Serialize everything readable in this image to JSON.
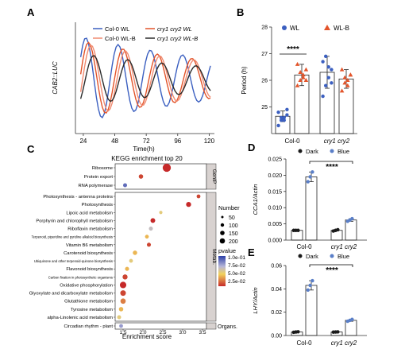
{
  "panels": {
    "A": {
      "letter": "A",
      "ylabel": "CAB2::LUC",
      "xlabel": "Time(h)",
      "xticks": [
        "24",
        "48",
        "72",
        "96",
        "120"
      ],
      "legend": [
        "Col-0 WL",
        "cry1 cry2 WL",
        "Col-0 WL-B",
        "cry1 cry2 WL-B"
      ]
    },
    "B": {
      "letter": "B",
      "ylabel": "Period (h)",
      "yticks": [
        "25",
        "26",
        "27",
        "28"
      ],
      "groups": [
        "Col-0",
        "cry1 cry2"
      ],
      "legend": [
        "WL",
        "WL-B"
      ],
      "sig": "****"
    },
    "C": {
      "letter": "C",
      "title": "KEGG enrichment top 20",
      "xlabel": "Enrichment score",
      "xticks": [
        "1.5",
        "2.0",
        "2.5",
        "3.0",
        "3.5"
      ],
      "facets": [
        "GenIP",
        "Metab.",
        "Organs."
      ],
      "size_title": "Number",
      "size_labels": [
        "50",
        "100",
        "150",
        "200"
      ],
      "color_title": "pvalue",
      "color_labels": [
        "1.0e-01",
        "7.5e-02",
        "5.0e-02",
        "2.5e-02"
      ]
    },
    "D": {
      "letter": "D",
      "ylabel": "CCA1/Actin",
      "yticks": [
        "0.000",
        "0.005",
        "0.010",
        "0.015",
        "0.020",
        "0.025"
      ],
      "groups": [
        "Col-0",
        "cry1 cry2"
      ],
      "legend": [
        "Dark",
        "Blue"
      ],
      "sig": "****"
    },
    "E": {
      "letter": "E",
      "ylabel": "LHY/Actin",
      "yticks": [
        "0.00",
        "0.02",
        "0.04",
        "0.06"
      ],
      "groups": [
        "Col-0",
        "cry1 cry2"
      ],
      "legend": [
        "Dark",
        "Blue"
      ],
      "sig": "****"
    }
  },
  "colors": {
    "col0_wl": "#3b5fc0",
    "cry_wl": "#e3542a",
    "col0_wlb": "#f08a70",
    "cry_wlb": "#2b2b2b",
    "dark": "#1a1a1a",
    "blue": "#5a7fc8",
    "facet": "#d8d2d0"
  },
  "chart_data": [
    {
      "panel": "A",
      "type": "line",
      "xlim": [
        18,
        124
      ],
      "series": [
        {
          "name": "Col-0 WL",
          "period_h": 24.6,
          "phase_h": 26,
          "amplitude": 1.0,
          "color": "#3b5fc0"
        },
        {
          "name": "cry1 cry2 WL",
          "period_h": 26.3,
          "phase_h": 28,
          "amplitude": 0.9,
          "color": "#e3542a"
        },
        {
          "name": "Col-0 WL-B",
          "period_h": 26.2,
          "phase_h": 30,
          "amplitude": 0.85,
          "color": "#f08a70"
        },
        {
          "name": "cry1 cry2 WL-B",
          "period_h": 26.0,
          "phase_h": 32,
          "amplitude": 0.6,
          "color": "#2b2b2b"
        }
      ]
    },
    {
      "panel": "B",
      "type": "bar",
      "ylim": [
        24,
        28
      ],
      "categories": [
        "Col-0",
        "cry1 cry2"
      ],
      "series": [
        {
          "name": "WL",
          "values": [
            24.65,
            26.3
          ],
          "err": [
            0.2,
            0.6
          ],
          "color": "#3b5fc0",
          "points": [
            [
              24.3,
              24.5,
              24.6,
              24.7,
              24.8,
              24.6,
              24.5,
              24.9
            ],
            [
              25.4,
              25.8,
              26.1,
              26.4,
              26.7,
              26.9,
              26.5,
              25.9
            ]
          ]
        },
        {
          "name": "WL-B",
          "values": [
            26.2,
            26.05
          ],
          "err": [
            0.4,
            0.35
          ],
          "color": "#e3542a",
          "points": [
            [
              25.8,
              26.0,
              26.2,
              26.4,
              26.6,
              26.3,
              26.1,
              26.0
            ],
            [
              25.6,
              25.9,
              26.0,
              26.2,
              26.4,
              26.1,
              25.8,
              26.2
            ]
          ]
        }
      ]
    },
    {
      "panel": "C",
      "type": "scatter",
      "xlim": [
        1.3,
        3.6
      ],
      "rows": [
        {
          "term": "Ribosome",
          "x": 2.6,
          "count": 220,
          "p": 0.02,
          "facet": "GenIP"
        },
        {
          "term": "Protein export",
          "x": 1.95,
          "count": 40,
          "p": 0.03,
          "facet": "GenIP"
        },
        {
          "term": "RNA polymerase",
          "x": 1.55,
          "count": 30,
          "p": 0.09,
          "facet": "GenIP"
        },
        {
          "term": "Photosynthesis - antenna proteins",
          "x": 3.4,
          "count": 25,
          "p": 0.03,
          "facet": "Metab."
        },
        {
          "term": "Photosynthesis",
          "x": 3.15,
          "count": 60,
          "p": 0.02,
          "facet": "Metab."
        },
        {
          "term": "Lipoic acid metabolism",
          "x": 2.45,
          "count": 15,
          "p": 0.06,
          "facet": "Metab."
        },
        {
          "term": "Porphyrin and chlorophyll metabolism",
          "x": 2.25,
          "count": 50,
          "p": 0.02,
          "facet": "Metab."
        },
        {
          "term": "Riboflavin metabolism",
          "x": 2.2,
          "count": 30,
          "p": 0.07,
          "facet": "Metab."
        },
        {
          "term": "Terpenoid, piperidine and pyridine alkaloid biosynthesis",
          "x": 2.1,
          "count": 25,
          "p": 0.05,
          "facet": "Metab."
        },
        {
          "term": "Vitamin B6 metabolism",
          "x": 2.15,
          "count": 30,
          "p": 0.03,
          "facet": "Metab."
        },
        {
          "term": "Carotenoid biosynthesis",
          "x": 1.8,
          "count": 40,
          "p": 0.05,
          "facet": "Metab."
        },
        {
          "term": "Ubiquinone and other terpenoid-quinone biosynthesis",
          "x": 1.7,
          "count": 25,
          "p": 0.06,
          "facet": "Metab."
        },
        {
          "term": "Flavonoid biosynthesis",
          "x": 1.6,
          "count": 30,
          "p": 0.05,
          "facet": "Metab."
        },
        {
          "term": "Carbon fixation in photosynthetic organisms",
          "x": 1.55,
          "count": 60,
          "p": 0.03,
          "facet": "Metab."
        },
        {
          "term": "Oxidative phosphorylation",
          "x": 1.5,
          "count": 120,
          "p": 0.02,
          "facet": "Metab."
        },
        {
          "term": "Glyoxylate and dicarboxylate metabolism",
          "x": 1.5,
          "count": 80,
          "p": 0.03,
          "facet": "Metab."
        },
        {
          "term": "Glutathione metabolism",
          "x": 1.5,
          "count": 70,
          "p": 0.04,
          "facet": "Metab."
        },
        {
          "term": "Tyrosine metabolism",
          "x": 1.45,
          "count": 40,
          "p": 0.05,
          "facet": "Metab."
        },
        {
          "term": "alpha-Linolenic acid metabolism",
          "x": 1.4,
          "count": 30,
          "p": 0.06,
          "facet": "Metab."
        },
        {
          "term": "Circadian rhythm - plant",
          "x": 1.45,
          "count": 25,
          "p": 0.08,
          "facet": "Organs."
        }
      ]
    },
    {
      "panel": "D",
      "type": "bar",
      "ylim": [
        0,
        0.025
      ],
      "categories": [
        "Col-0",
        "cry1 cry2"
      ],
      "series": [
        {
          "name": "Dark",
          "values": [
            0.003,
            0.003
          ],
          "err": [
            0.0001,
            0.0001
          ],
          "color": "#1a1a1a",
          "points": [
            [
              0.003,
              0.003,
              0.003
            ],
            [
              0.0028,
              0.003,
              0.0032
            ]
          ]
        },
        {
          "name": "Blue",
          "values": [
            0.0195,
            0.0062
          ],
          "err": [
            0.0015,
            0.0004
          ],
          "color": "#5a7fc8",
          "points": [
            [
              0.018,
              0.0195,
              0.021
            ],
            [
              0.0058,
              0.0062,
              0.0066
            ]
          ]
        }
      ]
    },
    {
      "panel": "E",
      "type": "bar",
      "ylim": [
        0,
        0.06
      ],
      "categories": [
        "Col-0",
        "cry1 cry2"
      ],
      "series": [
        {
          "name": "Dark",
          "values": [
            0.003,
            0.003
          ],
          "err": [
            0.0002,
            0.0002
          ],
          "color": "#1a1a1a",
          "points": [
            [
              0.0028,
              0.003,
              0.0032
            ],
            [
              0.0029,
              0.003,
              0.0031
            ]
          ]
        },
        {
          "name": "Blue",
          "values": [
            0.043,
            0.013
          ],
          "err": [
            0.004,
            0.0008
          ],
          "color": "#5a7fc8",
          "points": [
            [
              0.039,
              0.043,
              0.047
            ],
            [
              0.0122,
              0.013,
              0.0138
            ]
          ]
        }
      ]
    }
  ]
}
